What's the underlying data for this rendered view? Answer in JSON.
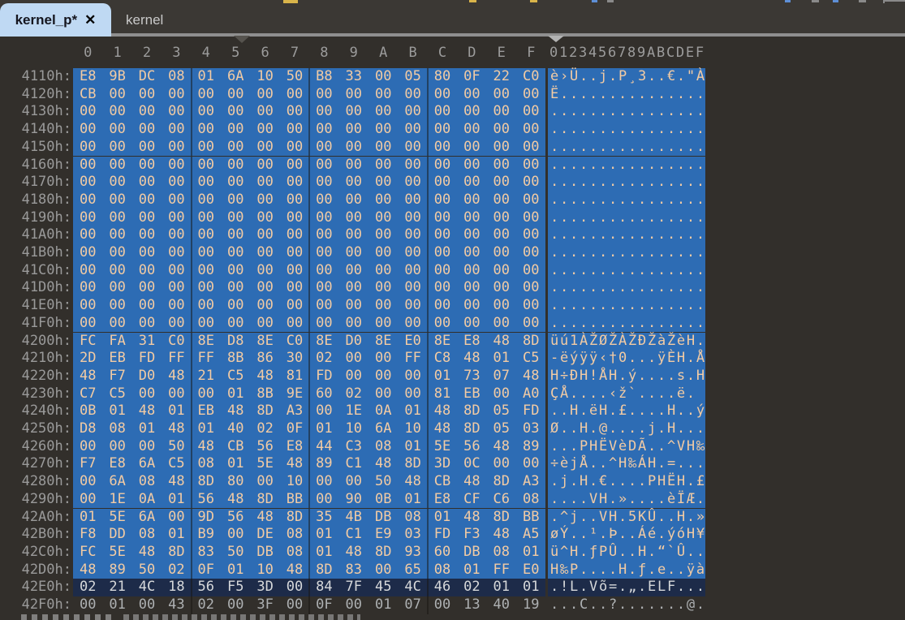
{
  "tabs": [
    {
      "label": "kernel_p*",
      "active": true,
      "modified": true,
      "close_icon": "✕"
    },
    {
      "label": "kernel",
      "active": false
    }
  ],
  "colors": {
    "selection_blue": "#2D6CB4",
    "cursor_row_navy": "#1D2B49",
    "hex_text_peach": "#F2CBA4",
    "editor_background": "#322F2B",
    "tab_active_blue": "#BFD9F3",
    "header_gray": "#9C9C9C",
    "toolbar_accent_yellow": "#D9B44A"
  },
  "hex_editor": {
    "column_headers": [
      "0",
      "1",
      "2",
      "3",
      "4",
      "5",
      "6",
      "7",
      "8",
      "9",
      "A",
      "B",
      "C",
      "D",
      "E",
      "F"
    ],
    "ascii_header": "0123456789ABCDEF",
    "rows": [
      {
        "addr": "4110h:",
        "bytes": "E8 9B DC 08 01 6A 10 50 B8 33 00 05 80 0F 22 C0",
        "ascii": "è›Ü..j.P¸3..€.\"À",
        "state": "selected"
      },
      {
        "addr": "4120h:",
        "bytes": "CB 00 00 00 00 00 00 00 00 00 00 00 00 00 00 00",
        "ascii": "Ë...............",
        "state": "selected"
      },
      {
        "addr": "4130h:",
        "bytes": "00 00 00 00 00 00 00 00 00 00 00 00 00 00 00 00",
        "ascii": "................",
        "state": "selected"
      },
      {
        "addr": "4140h:",
        "bytes": "00 00 00 00 00 00 00 00 00 00 00 00 00 00 00 00",
        "ascii": "................",
        "state": "selected"
      },
      {
        "addr": "4150h:",
        "bytes": "00 00 00 00 00 00 00 00 00 00 00 00 00 00 00 00",
        "ascii": "................",
        "state": "selected"
      },
      {
        "addr": "4160h:",
        "bytes": "00 00 00 00 00 00 00 00 00 00 00 00 00 00 00 00",
        "ascii": "................",
        "state": "selected"
      },
      {
        "addr": "4170h:",
        "bytes": "00 00 00 00 00 00 00 00 00 00 00 00 00 00 00 00",
        "ascii": "................",
        "state": "selected"
      },
      {
        "addr": "4180h:",
        "bytes": "00 00 00 00 00 00 00 00 00 00 00 00 00 00 00 00",
        "ascii": "................",
        "state": "selected"
      },
      {
        "addr": "4190h:",
        "bytes": "00 00 00 00 00 00 00 00 00 00 00 00 00 00 00 00",
        "ascii": "................",
        "state": "selected"
      },
      {
        "addr": "41A0h:",
        "bytes": "00 00 00 00 00 00 00 00 00 00 00 00 00 00 00 00",
        "ascii": "................",
        "state": "selected"
      },
      {
        "addr": "41B0h:",
        "bytes": "00 00 00 00 00 00 00 00 00 00 00 00 00 00 00 00",
        "ascii": "................",
        "state": "selected"
      },
      {
        "addr": "41C0h:",
        "bytes": "00 00 00 00 00 00 00 00 00 00 00 00 00 00 00 00",
        "ascii": "................",
        "state": "selected"
      },
      {
        "addr": "41D0h:",
        "bytes": "00 00 00 00 00 00 00 00 00 00 00 00 00 00 00 00",
        "ascii": "................",
        "state": "selected"
      },
      {
        "addr": "41E0h:",
        "bytes": "00 00 00 00 00 00 00 00 00 00 00 00 00 00 00 00",
        "ascii": "................",
        "state": "selected"
      },
      {
        "addr": "41F0h:",
        "bytes": "00 00 00 00 00 00 00 00 00 00 00 00 00 00 00 00",
        "ascii": "................",
        "state": "selected"
      },
      {
        "addr": "4200h:",
        "bytes": "FC FA 31 C0 8E D8 8E C0 8E D0 8E E0 8E E8 48 8D",
        "ascii": "üú1ÀŽØŽÀŽÐŽàŽèH.",
        "state": "selected"
      },
      {
        "addr": "4210h:",
        "bytes": "2D EB FD FF FF 8B 86 30 02 00 00 FF C8 48 01 C5",
        "ascii": "-ëýÿÿ‹†0...ÿÈH.Å",
        "state": "selected"
      },
      {
        "addr": "4220h:",
        "bytes": "48 F7 D0 48 21 C5 48 81 FD 00 00 00 01 73 07 48",
        "ascii": "H÷ÐH!ÅH.ý....s.H",
        "state": "selected"
      },
      {
        "addr": "4230h:",
        "bytes": "C7 C5 00 00 00 01 8B 9E 60 02 00 00 81 EB 00 A0",
        "ascii": "ÇÅ....‹ž`....ë. ",
        "state": "selected"
      },
      {
        "addr": "4240h:",
        "bytes": "0B 01 48 01 EB 48 8D A3 00 1E 0A 01 48 8D 05 FD",
        "ascii": "..H.ëH.£....H..ý",
        "state": "selected"
      },
      {
        "addr": "4250h:",
        "bytes": "D8 08 01 48 01 40 02 0F 01 10 6A 10 48 8D 05 03",
        "ascii": "Ø..H.@....j.H...",
        "state": "selected"
      },
      {
        "addr": "4260h:",
        "bytes": "00 00 00 50 48 CB 56 E8 44 C3 08 01 5E 56 48 89",
        "ascii": "...PHËVèDÃ..^VH‰",
        "state": "selected"
      },
      {
        "addr": "4270h:",
        "bytes": "F7 E8 6A C5 08 01 5E 48 89 C1 48 8D 3D 0C 00 00",
        "ascii": "÷èjÅ..^H‰ÁH.=...",
        "state": "selected"
      },
      {
        "addr": "4280h:",
        "bytes": "00 6A 08 48 8D 80 00 10 00 00 50 48 CB 48 8D A3",
        "ascii": ".j.H.€....PHËH.£",
        "state": "selected"
      },
      {
        "addr": "4290h:",
        "bytes": "00 1E 0A 01 56 48 8D BB 00 90 0B 01 E8 CF C6 08",
        "ascii": "....VH.»....èÏÆ.",
        "state": "selected"
      },
      {
        "addr": "42A0h:",
        "bytes": "01 5E 6A 00 9D 56 48 8D 35 4B DB 08 01 48 8D BB",
        "ascii": ".^j..VH.5KÛ..H.»",
        "state": "selected"
      },
      {
        "addr": "42B0h:",
        "bytes": "F8 DD 08 01 B9 00 DE 08 01 C1 E9 03 FD F3 48 A5",
        "ascii": "øÝ..¹.Þ..Áé.ýóH¥",
        "state": "selected"
      },
      {
        "addr": "42C0h:",
        "bytes": "FC 5E 48 8D 83 50 DB 08 01 48 8D 93 60 DB 08 01",
        "ascii": "ü^H.ƒPÛ..H.“`Û..",
        "state": "selected"
      },
      {
        "addr": "42D0h:",
        "bytes": "48 89 50 02 0F 01 10 48 8D 83 00 65 08 01 FF E0",
        "ascii": "H‰P....H.ƒ.e..ÿà",
        "state": "selected"
      },
      {
        "addr": "42E0h:",
        "bytes": "02 21 4C 18 56 F5 3D 00 84 7F 45 4C 46 02 01 01",
        "ascii": ".!L.Võ=.„.ELF...",
        "state": "cursor"
      },
      {
        "addr": "42F0h:",
        "bytes": "00 01 00 43 02 00 3F 00 0F 00 01 07 00 13 40 19",
        "ascii": "...C..?.......@.",
        "state": "normal"
      }
    ]
  }
}
